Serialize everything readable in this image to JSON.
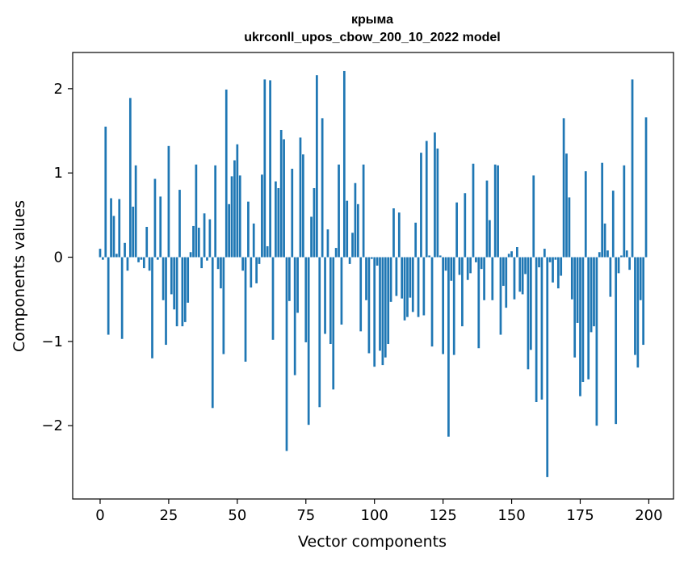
{
  "chart_data": {
    "type": "bar",
    "title_line1": "крыма",
    "title_line2": "ukrconll_upos_cbow_200_10_2022 model",
    "xlabel": "Vector components",
    "ylabel": "Components values",
    "xlim": [
      -10,
      209
    ],
    "ylim": [
      -2.87,
      2.43
    ],
    "grid": false,
    "bar_color": "#1f77b4",
    "x_ticks": [
      0,
      25,
      50,
      75,
      100,
      125,
      150,
      175,
      200
    ],
    "x_tick_labels": [
      "0",
      "25",
      "50",
      "75",
      "100",
      "125",
      "150",
      "175",
      "200"
    ],
    "y_ticks": [
      2,
      1,
      0,
      -1,
      -2
    ],
    "y_tick_labels": [
      "2",
      "1",
      "0",
      "−1",
      "−2"
    ],
    "x": [
      0,
      1,
      2,
      3,
      4,
      5,
      6,
      7,
      8,
      9,
      10,
      11,
      12,
      13,
      14,
      15,
      16,
      17,
      18,
      19,
      20,
      21,
      22,
      23,
      24,
      25,
      26,
      27,
      28,
      29,
      30,
      31,
      32,
      33,
      34,
      35,
      36,
      37,
      38,
      39,
      40,
      41,
      42,
      43,
      44,
      45,
      46,
      47,
      48,
      49,
      50,
      51,
      52,
      53,
      54,
      55,
      56,
      57,
      58,
      59,
      60,
      61,
      62,
      63,
      64,
      65,
      66,
      67,
      68,
      69,
      70,
      71,
      72,
      73,
      74,
      75,
      76,
      77,
      78,
      79,
      80,
      81,
      82,
      83,
      84,
      85,
      86,
      87,
      88,
      89,
      90,
      91,
      92,
      93,
      94,
      95,
      96,
      97,
      98,
      99,
      100,
      101,
      102,
      103,
      104,
      105,
      106,
      107,
      108,
      109,
      110,
      111,
      112,
      113,
      114,
      115,
      116,
      117,
      118,
      119,
      120,
      121,
      122,
      123,
      124,
      125,
      126,
      127,
      128,
      129,
      130,
      131,
      132,
      133,
      134,
      135,
      136,
      137,
      138,
      139,
      140,
      141,
      142,
      143,
      144,
      145,
      146,
      147,
      148,
      149,
      150,
      151,
      152,
      153,
      154,
      155,
      156,
      157,
      158,
      159,
      160,
      161,
      162,
      163,
      164,
      165,
      166,
      167,
      168,
      169,
      170,
      171,
      172,
      173,
      174,
      175,
      176,
      177,
      178,
      179,
      180,
      181,
      182,
      183,
      184,
      185,
      186,
      187,
      188,
      189,
      190,
      191,
      192,
      193,
      194,
      195,
      196,
      197,
      198,
      199
    ],
    "values": [
      0.1,
      -0.03,
      1.55,
      -0.92,
      0.7,
      0.49,
      0.04,
      0.69,
      -0.97,
      0.17,
      -0.16,
      1.89,
      0.6,
      1.09,
      -0.06,
      -0.03,
      -0.13,
      0.36,
      -0.16,
      -1.2,
      0.93,
      -0.03,
      0.72,
      -0.51,
      -1.04,
      1.32,
      -0.44,
      -0.62,
      -0.82,
      0.8,
      -0.82,
      -0.77,
      -0.54,
      0.06,
      0.37,
      1.1,
      0.35,
      -0.13,
      0.52,
      -0.04,
      0.45,
      -1.79,
      1.09,
      -0.14,
      -0.37,
      -1.15,
      1.99,
      0.63,
      0.96,
      1.15,
      1.34,
      0.97,
      -0.16,
      -1.24,
      0.66,
      -0.36,
      0.4,
      -0.31,
      -0.08,
      0.98,
      2.11,
      0.13,
      2.1,
      -0.98,
      0.9,
      0.82,
      1.51,
      1.4,
      -2.3,
      -0.52,
      1.05,
      -1.4,
      -0.66,
      1.42,
      1.22,
      -1.01,
      -1.99,
      0.48,
      0.82,
      2.16,
      -1.78,
      1.65,
      -0.91,
      0.33,
      -1.03,
      -1.57,
      0.11,
      1.1,
      -0.8,
      2.21,
      0.67,
      -0.08,
      0.29,
      0.88,
      0.63,
      -0.88,
      1.1,
      -0.51,
      -1.14,
      -0.02,
      -1.3,
      -0.1,
      -1.11,
      -1.28,
      -1.19,
      -1.03,
      -0.53,
      0.58,
      -0.46,
      0.53,
      -0.49,
      -0.75,
      -0.71,
      -0.48,
      -0.65,
      0.41,
      -0.71,
      1.24,
      -0.69,
      1.38,
      0.02,
      -1.06,
      1.48,
      1.29,
      0.02,
      -1.15,
      -0.16,
      -2.13,
      -0.28,
      -1.16,
      0.65,
      -0.21,
      -0.82,
      0.76,
      -0.27,
      -0.19,
      1.11,
      -0.06,
      -1.08,
      -0.14,
      -0.51,
      0.91,
      0.44,
      -0.51,
      1.1,
      1.09,
      -0.92,
      -0.34,
      -0.6,
      0.04,
      0.07,
      -0.5,
      0.12,
      -0.41,
      -0.44,
      -0.2,
      -1.33,
      -1.1,
      0.97,
      -1.72,
      -0.12,
      -1.69,
      0.1,
      -2.61,
      -0.06,
      -0.3,
      -0.03,
      -0.37,
      -0.22,
      1.65,
      1.23,
      0.71,
      -0.5,
      -1.19,
      -0.78,
      -1.65,
      -1.48,
      1.02,
      -1.45,
      -0.89,
      -0.82,
      -2.0,
      0.06,
      1.12,
      0.4,
      0.08,
      -0.47,
      0.79,
      -1.98,
      -0.19,
      0.02,
      1.09,
      0.08,
      -0.15,
      2.11,
      -1.16,
      -1.31,
      -0.51,
      -1.04,
      1.66
    ]
  }
}
